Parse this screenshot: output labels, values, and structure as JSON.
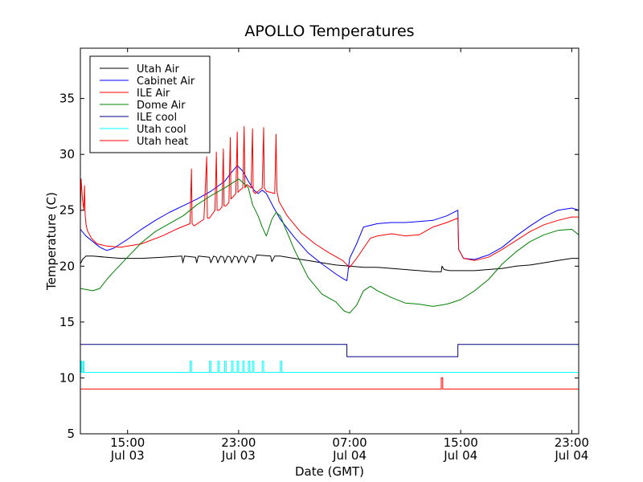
{
  "chart_data": {
    "type": "line",
    "title": "APOLLO Temperatures",
    "xlabel": "Date (GMT)",
    "ylabel": "Temperature (C)",
    "xlim": [
      11.6,
      47.5
    ],
    "ylim": [
      5,
      39.5
    ],
    "x_unit": "hours since Jul 03 00:00 GMT",
    "yticks": [
      5,
      10,
      15,
      20,
      25,
      30,
      35
    ],
    "xticks": [
      {
        "x": 15,
        "time": "15:00",
        "date": "Jul 03"
      },
      {
        "x": 23,
        "time": "23:00",
        "date": "Jul 03"
      },
      {
        "x": 31,
        "time": "07:00",
        "date": "Jul 04"
      },
      {
        "x": 39,
        "time": "15:00",
        "date": "Jul 04"
      },
      {
        "x": 47,
        "time": "23:00",
        "date": "Jul 04"
      }
    ],
    "legend_position": "upper-left",
    "series": [
      {
        "name": "Utah Air",
        "color": "#000000",
        "x": [
          11.6,
          11.75,
          12.0,
          12.5,
          13.5,
          14.5,
          16.0,
          17.5,
          18.9,
          18.98,
          19.1,
          19.9,
          19.98,
          20.1,
          20.9,
          21.0,
          21.2,
          21.4,
          21.5,
          21.7,
          21.9,
          22.0,
          22.2,
          22.4,
          22.5,
          22.7,
          22.9,
          23.0,
          23.2,
          23.4,
          23.5,
          23.7,
          24.0,
          24.1,
          24.3,
          25.3,
          25.4,
          25.6,
          26.0,
          27.0,
          28.0,
          29.0,
          30.0,
          31.0,
          32.0,
          33.0,
          34.0,
          35.0,
          36.0,
          37.0,
          37.6,
          37.65,
          37.8,
          38.2,
          39.0,
          40.0,
          41.0,
          42.0,
          43.0,
          44.0,
          45.0,
          46.0,
          47.0,
          47.5
        ],
        "y": [
          20.2,
          20.6,
          20.9,
          20.9,
          20.8,
          20.7,
          20.7,
          20.8,
          20.9,
          20.3,
          20.9,
          20.8,
          20.3,
          20.9,
          20.8,
          20.3,
          20.9,
          20.8,
          20.3,
          20.9,
          20.8,
          20.3,
          20.9,
          20.8,
          20.3,
          20.9,
          20.8,
          20.3,
          20.9,
          20.8,
          20.3,
          20.9,
          20.8,
          20.3,
          21.0,
          20.9,
          20.4,
          20.9,
          20.9,
          20.7,
          20.5,
          20.3,
          20.1,
          20.0,
          19.9,
          19.9,
          19.8,
          19.7,
          19.6,
          19.5,
          19.5,
          20.0,
          19.7,
          19.6,
          19.6,
          19.6,
          19.7,
          19.8,
          20.0,
          20.1,
          20.3,
          20.5,
          20.7,
          20.7
        ]
      },
      {
        "name": "Cabinet Air",
        "color": "#0000ff",
        "x": [
          11.6,
          12.0,
          12.5,
          13.0,
          13.5,
          14.0,
          15.0,
          16.0,
          17.0,
          18.0,
          19.0,
          20.0,
          21.0,
          22.0,
          22.5,
          22.9,
          23.3,
          23.7,
          24.1,
          24.4,
          24.7,
          25.0,
          25.5,
          26.0,
          27.0,
          28.0,
          29.0,
          30.0,
          30.5,
          30.8,
          31.0,
          31.5,
          32.0,
          33.0,
          34.0,
          35.0,
          36.0,
          37.0,
          38.0,
          38.8,
          38.85,
          39.2,
          40.0,
          41.0,
          42.0,
          43.0,
          44.0,
          45.0,
          46.0,
          47.0,
          47.5
        ],
        "y": [
          23.3,
          22.7,
          22.2,
          21.7,
          21.4,
          21.6,
          22.4,
          23.3,
          24.1,
          24.8,
          25.4,
          26.0,
          26.7,
          27.6,
          28.4,
          29.0,
          28.5,
          27.6,
          26.8,
          26.5,
          26.8,
          26.5,
          25.3,
          24.2,
          22.6,
          21.2,
          20.2,
          19.3,
          18.9,
          18.7,
          20.7,
          22.0,
          23.5,
          23.8,
          23.9,
          23.9,
          24.0,
          24.1,
          24.5,
          25.0,
          21.5,
          20.7,
          20.6,
          21.0,
          21.7,
          22.7,
          23.6,
          24.4,
          25.0,
          25.2,
          25.0
        ]
      },
      {
        "name": "ILE Air",
        "color": "#ff0000",
        "x": [
          11.6,
          11.65,
          11.75,
          11.85,
          11.9,
          11.95,
          12.0,
          12.1,
          12.4,
          12.8,
          13.5,
          14.5,
          16.0,
          17.5,
          18.5,
          19.5,
          19.6,
          19.65,
          19.8,
          20.5,
          20.7,
          20.75,
          20.9,
          21.3,
          21.4,
          21.45,
          21.6,
          21.8,
          21.9,
          21.95,
          22.1,
          22.3,
          22.4,
          22.45,
          22.6,
          22.8,
          22.9,
          22.95,
          23.1,
          23.3,
          23.4,
          23.45,
          23.6,
          23.9,
          24.0,
          24.05,
          24.2,
          24.7,
          24.8,
          24.85,
          25.0,
          25.6,
          25.7,
          25.75,
          25.9,
          26.5,
          27.5,
          28.5,
          29.5,
          30.5,
          31.0,
          31.5,
          32.0,
          32.5,
          33.0,
          34.0,
          34.5,
          35.0,
          36.0,
          37.0,
          38.0,
          38.8,
          38.85,
          39.2,
          40.0,
          41.0,
          42.0,
          43.0,
          44.0,
          45.0,
          46.0,
          47.0,
          47.5
        ],
        "y": [
          24.5,
          27.8,
          26.0,
          25.0,
          27.2,
          24.5,
          23.8,
          23.2,
          22.5,
          22.0,
          21.8,
          21.7,
          22.0,
          22.7,
          23.3,
          23.8,
          28.7,
          23.8,
          23.6,
          24.2,
          29.8,
          24.3,
          24.3,
          25.0,
          30.2,
          25.0,
          25.0,
          25.3,
          30.5,
          25.4,
          25.4,
          25.7,
          31.5,
          26.0,
          26.2,
          26.5,
          32.0,
          26.6,
          26.8,
          27.0,
          32.5,
          27.0,
          27.3,
          27.0,
          32.3,
          26.7,
          26.5,
          27.0,
          32.4,
          27.0,
          26.7,
          26.5,
          31.8,
          26.8,
          25.8,
          24.5,
          23.0,
          22.0,
          21.2,
          20.5,
          19.9,
          20.7,
          21.6,
          22.5,
          22.7,
          22.9,
          22.8,
          22.7,
          22.8,
          23.5,
          23.9,
          24.3,
          21.5,
          20.7,
          20.5,
          20.8,
          21.5,
          22.3,
          23.1,
          23.7,
          24.1,
          24.4,
          24.4
        ]
      },
      {
        "name": "Dome Air",
        "color": "#008000",
        "x": [
          11.6,
          12.5,
          13.0,
          13.5,
          14.0,
          15.0,
          16.0,
          17.0,
          18.0,
          19.0,
          20.0,
          21.0,
          22.0,
          23.0,
          23.3,
          23.7,
          24.0,
          24.4,
          24.7,
          25.0,
          25.4,
          25.7,
          26.0,
          27.0,
          28.0,
          29.0,
          30.0,
          30.6,
          31.0,
          31.5,
          32.0,
          32.5,
          33.0,
          34.0,
          35.0,
          36.0,
          37.0,
          38.0,
          39.0,
          40.0,
          41.0,
          42.0,
          43.0,
          44.0,
          45.0,
          46.0,
          47.0,
          47.5
        ],
        "y": [
          18.0,
          17.8,
          18.0,
          18.8,
          19.5,
          20.8,
          22.1,
          23.1,
          23.8,
          24.5,
          25.5,
          26.3,
          27.0,
          27.8,
          27.5,
          27.0,
          25.5,
          24.5,
          23.5,
          22.7,
          24.2,
          24.8,
          24.5,
          21.5,
          19.0,
          17.5,
          16.8,
          16.0,
          15.8,
          16.5,
          17.8,
          18.2,
          17.8,
          17.2,
          16.7,
          16.6,
          16.4,
          16.6,
          17.0,
          17.8,
          18.8,
          20.2,
          21.3,
          22.2,
          22.8,
          23.2,
          23.3,
          22.8
        ]
      },
      {
        "name": "ILE cool",
        "color": "#000080",
        "x": [
          11.6,
          30.8,
          30.8,
          38.8,
          38.8,
          47.5
        ],
        "y": [
          13.0,
          13.0,
          11.9,
          11.9,
          13.0,
          13.0
        ]
      },
      {
        "name": "Utah cool",
        "color": "#00ffff",
        "x": [
          11.6,
          11.65,
          11.65,
          11.7,
          11.7,
          11.8,
          11.8,
          11.85,
          11.85,
          11.9,
          11.9,
          19.5,
          19.5,
          19.6,
          19.6,
          20.9,
          20.9,
          21.0,
          21.0,
          21.5,
          21.5,
          21.6,
          21.6,
          22.0,
          22.0,
          22.1,
          22.1,
          22.5,
          22.5,
          22.6,
          22.6,
          22.9,
          22.9,
          23.0,
          23.0,
          23.3,
          23.3,
          23.4,
          23.4,
          23.7,
          23.7,
          23.8,
          23.8,
          24.0,
          24.0,
          24.1,
          24.1,
          24.7,
          24.7,
          24.8,
          24.8,
          26.0,
          26.0,
          26.1,
          26.1,
          47.5
        ],
        "y": [
          10.5,
          10.5,
          11.5,
          11.5,
          10.5,
          10.5,
          11.5,
          11.5,
          10.5,
          10.5,
          10.5,
          10.5,
          11.5,
          11.5,
          10.5,
          10.5,
          11.5,
          11.5,
          10.5,
          10.5,
          11.5,
          11.5,
          10.5,
          10.5,
          11.5,
          11.5,
          10.5,
          10.5,
          11.5,
          11.5,
          10.5,
          10.5,
          11.5,
          11.5,
          10.5,
          10.5,
          11.5,
          11.5,
          10.5,
          10.5,
          11.5,
          11.5,
          10.5,
          10.5,
          11.5,
          11.5,
          10.5,
          10.5,
          11.5,
          11.5,
          10.5,
          10.5,
          11.5,
          11.5,
          10.5,
          10.5
        ]
      },
      {
        "name": "Utah heat",
        "color": "#ff0000",
        "x": [
          11.6,
          37.6,
          37.6,
          37.7,
          37.7,
          47.5
        ],
        "y": [
          9.0,
          9.0,
          10.0,
          10.0,
          9.0,
          9.0
        ]
      }
    ]
  }
}
